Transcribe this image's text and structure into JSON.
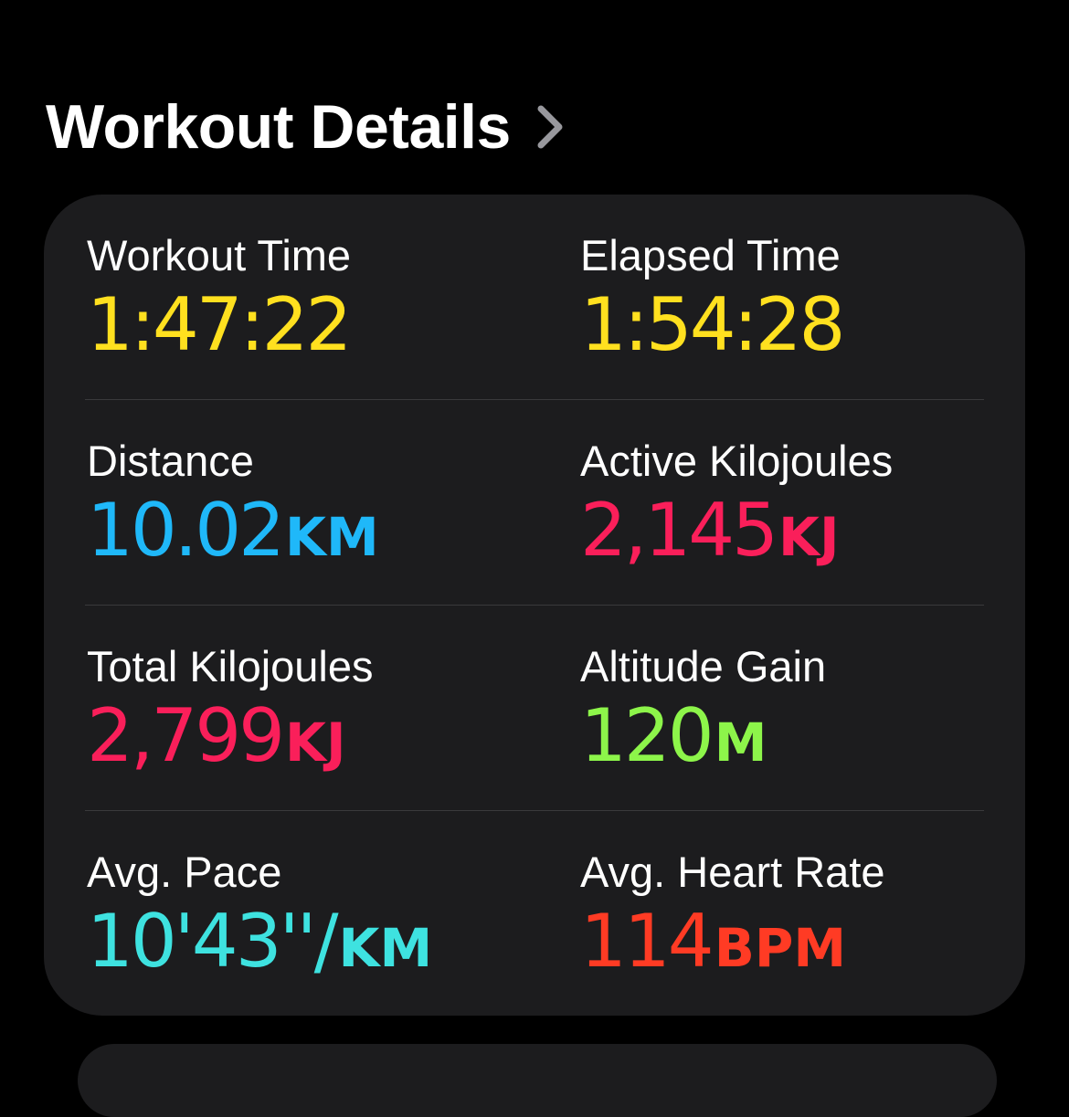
{
  "header": {
    "title": "Workout Details",
    "chevron_icon": "chevron-right-icon"
  },
  "metrics": [
    {
      "label": "Workout Time",
      "value": "1:47:22",
      "unit": "",
      "color": "#ffe01f"
    },
    {
      "label": "Elapsed Time",
      "value": "1:54:28",
      "unit": "",
      "color": "#ffe01f"
    },
    {
      "label": "Distance",
      "value": "10.02",
      "unit": "KM",
      "color": "#1fb8f9"
    },
    {
      "label": "Active Kilojoules",
      "value": "2,145",
      "unit": "KJ",
      "color": "#fa1f5a"
    },
    {
      "label": "Total Kilojoules",
      "value": "2,799",
      "unit": "KJ",
      "color": "#fa1f5a"
    },
    {
      "label": "Altitude Gain",
      "value": "120",
      "unit": "M",
      "color": "#8df54a"
    },
    {
      "label": "Avg. Pace",
      "value": "10'43''/",
      "unit": "KM",
      "color": "#3ee2e0"
    },
    {
      "label": "Avg. Heart Rate",
      "value": "114",
      "unit": "BPM",
      "color": "#ff3b24"
    }
  ]
}
